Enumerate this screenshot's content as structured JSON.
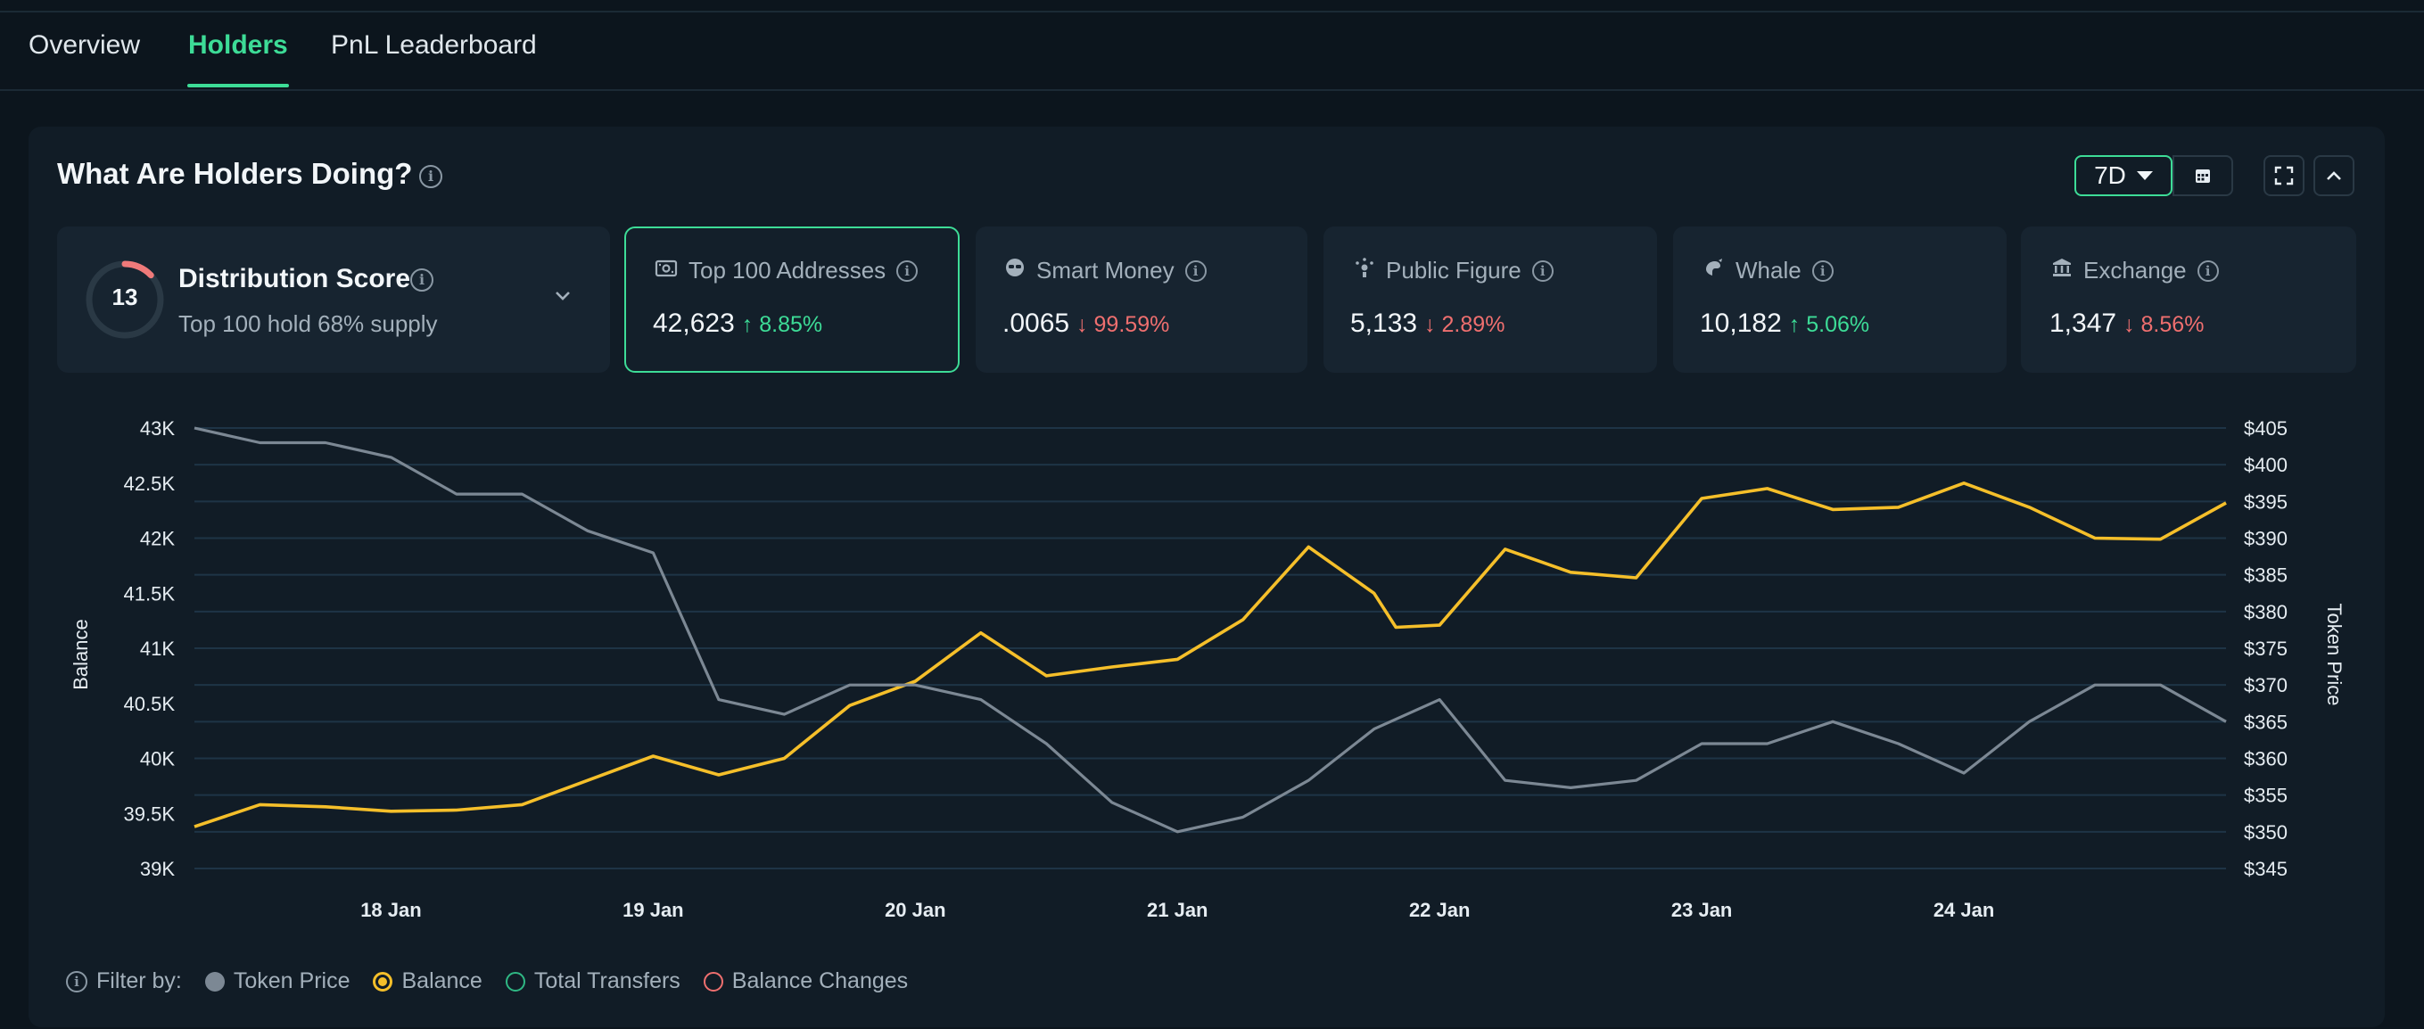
{
  "tabs": [
    {
      "label": "Overview"
    },
    {
      "label": "Holders"
    },
    {
      "label": "PnL Leaderboard"
    }
  ],
  "active_tab": "Holders",
  "panel": {
    "title": "What Are Holders Doing?",
    "range": "7D",
    "icons": [
      "calendar-icon",
      "fullscreen-icon",
      "chevron-up-icon"
    ]
  },
  "distribution": {
    "score": "13",
    "score_fraction": 0.13,
    "title": "Distribution Score",
    "subtitle": "Top 100 hold 68% supply"
  },
  "cards": [
    {
      "label": "Top 100 Addresses",
      "value": "42,623",
      "change": "8.85%",
      "direction": "up",
      "icon": "banknote-icon"
    },
    {
      "label": "Smart Money",
      "value": ".0065",
      "change": "99.59%",
      "direction": "down",
      "icon": "sunglasses-icon"
    },
    {
      "label": "Public Figure",
      "value": "5,133",
      "change": "2.89%",
      "direction": "down",
      "icon": "spotlight-icon"
    },
    {
      "label": "Whale",
      "value": "10,182",
      "change": "5.06%",
      "direction": "up",
      "icon": "whale-icon"
    },
    {
      "label": "Exchange",
      "value": "1,347",
      "change": "8.56%",
      "direction": "down",
      "icon": "bank-icon"
    }
  ],
  "colors": {
    "accent": "#3ddc97",
    "balance_line": "#f5bf2a",
    "price_line": "#7c8894",
    "down": "#ef6f6f",
    "grid": "#1e3446"
  },
  "chart_data": {
    "type": "line",
    "x_type": "date",
    "x_ticks": [
      "18 Jan",
      "19 Jan",
      "20 Jan",
      "21 Jan",
      "22 Jan",
      "23 Jan",
      "24 Jan"
    ],
    "x_range": [
      "2025-01-17 06:00",
      "2025-01-25 00:00"
    ],
    "ylabel": "Balance",
    "ylabel_right": "Token Price",
    "y_ticks": [
      "39K",
      "39.5K",
      "40K",
      "40.5K",
      "41K",
      "41.5K",
      "42K",
      "42.5K",
      "43K"
    ],
    "y_tick_values": [
      39000,
      39500,
      40000,
      40500,
      41000,
      41500,
      42000,
      42500,
      43000
    ],
    "ylim": [
      39000,
      43000
    ],
    "y2_ticks": [
      "$345",
      "$350",
      "$355",
      "$360",
      "$365",
      "$370",
      "$375",
      "$380",
      "$385",
      "$390",
      "$395",
      "$400",
      "$405"
    ],
    "y2_tick_values": [
      345,
      350,
      355,
      360,
      365,
      370,
      375,
      380,
      385,
      390,
      395,
      400,
      405
    ],
    "y2lim": [
      345,
      405
    ],
    "grid": true,
    "series": [
      {
        "name": "Balance",
        "axis": "left",
        "x": [
          "2025-01-17 06:00",
          "2025-01-17 12:00",
          "2025-01-17 18:00",
          "2025-01-18 00:00",
          "2025-01-18 06:00",
          "2025-01-18 12:00",
          "2025-01-18 18:00",
          "2025-01-19 00:00",
          "2025-01-19 06:00",
          "2025-01-19 12:00",
          "2025-01-19 18:00",
          "2025-01-20 00:00",
          "2025-01-20 06:00",
          "2025-01-20 12:00",
          "2025-01-20 18:00",
          "2025-01-21 00:00",
          "2025-01-21 06:00",
          "2025-01-21 12:00",
          "2025-01-21 18:00",
          "2025-01-21 20:00",
          "2025-01-22 00:00",
          "2025-01-22 06:00",
          "2025-01-22 12:00",
          "2025-01-22 18:00",
          "2025-01-23 00:00",
          "2025-01-23 06:00",
          "2025-01-23 12:00",
          "2025-01-23 18:00",
          "2025-01-24 00:00",
          "2025-01-24 06:00",
          "2025-01-24 12:00",
          "2025-01-24 18:00",
          "2025-01-25 00:00"
        ],
        "y": [
          39380,
          39580,
          39560,
          39520,
          39530,
          39580,
          39800,
          40020,
          39850,
          40000,
          40480,
          40700,
          41140,
          40750,
          40830,
          40900,
          41260,
          41920,
          41500,
          41190,
          41210,
          41900,
          41690,
          41640,
          42360,
          42450,
          42260,
          42280,
          42500,
          42280,
          42000,
          41990,
          42320
        ]
      },
      {
        "name": "Token Price",
        "axis": "right",
        "x": [
          "2025-01-17 06:00",
          "2025-01-17 12:00",
          "2025-01-17 18:00",
          "2025-01-18 00:00",
          "2025-01-18 06:00",
          "2025-01-18 12:00",
          "2025-01-18 18:00",
          "2025-01-19 00:00",
          "2025-01-19 06:00",
          "2025-01-19 12:00",
          "2025-01-19 18:00",
          "2025-01-20 00:00",
          "2025-01-20 06:00",
          "2025-01-20 12:00",
          "2025-01-20 18:00",
          "2025-01-21 00:00",
          "2025-01-21 06:00",
          "2025-01-21 12:00",
          "2025-01-21 18:00",
          "2025-01-22 00:00",
          "2025-01-22 06:00",
          "2025-01-22 12:00",
          "2025-01-22 18:00",
          "2025-01-23 00:00",
          "2025-01-23 06:00",
          "2025-01-23 12:00",
          "2025-01-23 18:00",
          "2025-01-24 00:00",
          "2025-01-24 06:00",
          "2025-01-24 12:00",
          "2025-01-24 18:00",
          "2025-01-25 00:00"
        ],
        "y": [
          405,
          403,
          403,
          401,
          396,
          396,
          391,
          388,
          368,
          366,
          370,
          370,
          368,
          362,
          354,
          350,
          352,
          357,
          364,
          368,
          357,
          356,
          357,
          362,
          362,
          365,
          362,
          358,
          365,
          370,
          370,
          365
        ]
      }
    ]
  },
  "filter": {
    "label": "Filter by:",
    "items": [
      {
        "label": "Token Price",
        "state": "filled",
        "color": "#7c8894"
      },
      {
        "label": "Balance",
        "state": "selected",
        "color": "#f5bf2a"
      },
      {
        "label": "Total Transfers",
        "state": "outline",
        "color": "#2fb884"
      },
      {
        "label": "Balance Changes",
        "state": "outline",
        "color": "#ef6f6f"
      }
    ]
  }
}
